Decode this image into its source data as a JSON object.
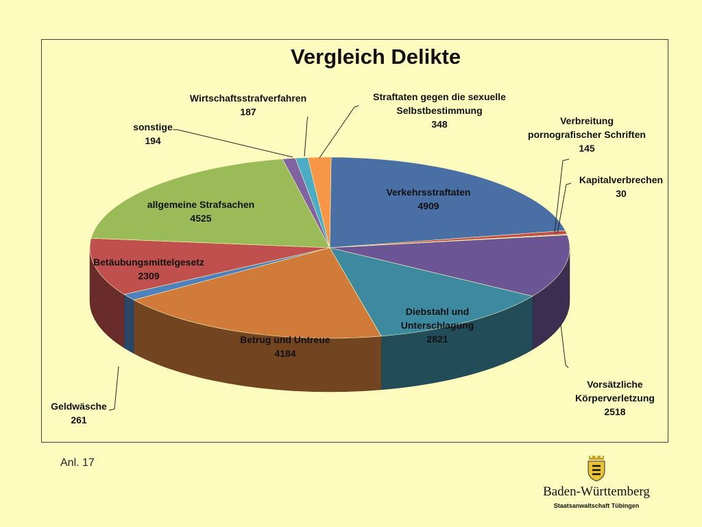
{
  "chart_data": {
    "type": "pie",
    "title": "Vergleich Delikte",
    "slices": [
      {
        "label": "Verkehrsstraftaten",
        "value": 4909,
        "color": "#4a6fa5"
      },
      {
        "label": "Verbreitung pornografischer Schriften",
        "value": 145,
        "color": "#c0504d"
      },
      {
        "label": "Kapitalverbrechen",
        "value": 30,
        "color": "#9bbb59"
      },
      {
        "label": "Vorsätzliche Körperverletzung",
        "value": 2518,
        "color": "#6b5594"
      },
      {
        "label": "Diebstahl und Unterschlagung",
        "value": 2821,
        "color": "#3d8aa0"
      },
      {
        "label": "Betrug und Untreue",
        "value": 4184,
        "color": "#d07b3a"
      },
      {
        "label": "Geldwäsche",
        "value": 261,
        "color": "#4f81bd"
      },
      {
        "label": "Betäubungsmittelgesetz",
        "value": 2309,
        "color": "#c0504d"
      },
      {
        "label": "allgemeine Strafsachen",
        "value": 4525,
        "color": "#9bbb59"
      },
      {
        "label": "sonstige",
        "value": 194,
        "color": "#8064a2"
      },
      {
        "label": "Wirtschaftsstrafverfahren",
        "value": 187,
        "color": "#4bacc6"
      },
      {
        "label": "Straftaten gegen die sexuelle Selbstbestimmung",
        "value": 348,
        "color": "#f79646"
      }
    ]
  },
  "footer": {
    "note": "Anl. 17",
    "brand": "Baden-Württemberg",
    "office": "Staatsanwaltschaft Tübingen",
    "crest_icon": "coat-of-arms-icon"
  }
}
